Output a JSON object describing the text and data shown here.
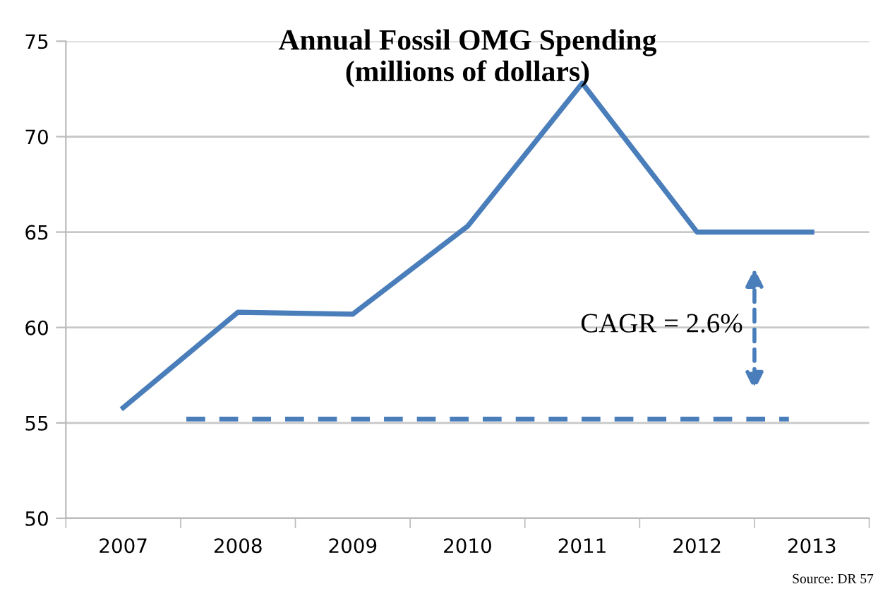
{
  "chart_data": {
    "type": "line",
    "title": "Annual Fossil OMG Spending\n(millions of dollars)",
    "categories": [
      "2007",
      "2008",
      "2009",
      "2010",
      "2011",
      "2012",
      "2013"
    ],
    "series": [
      {
        "color": "#4a7ebb",
        "values": [
          55.8,
          60.8,
          60.7,
          65.3,
          72.8,
          65.0,
          65.0
        ]
      }
    ],
    "ylim": [
      50,
      75
    ],
    "yticks": [
      50,
      55,
      60,
      65,
      70,
      75
    ],
    "grid": "y",
    "marker": "none",
    "line_style": "solid",
    "ref_lines": [
      {
        "axis": "y",
        "value": 55.2,
        "color": "#4a7ebb",
        "line_style": "dashed"
      }
    ],
    "annotations": [
      "CAGR = 2.6%",
      "Source: DR 57"
    ]
  }
}
